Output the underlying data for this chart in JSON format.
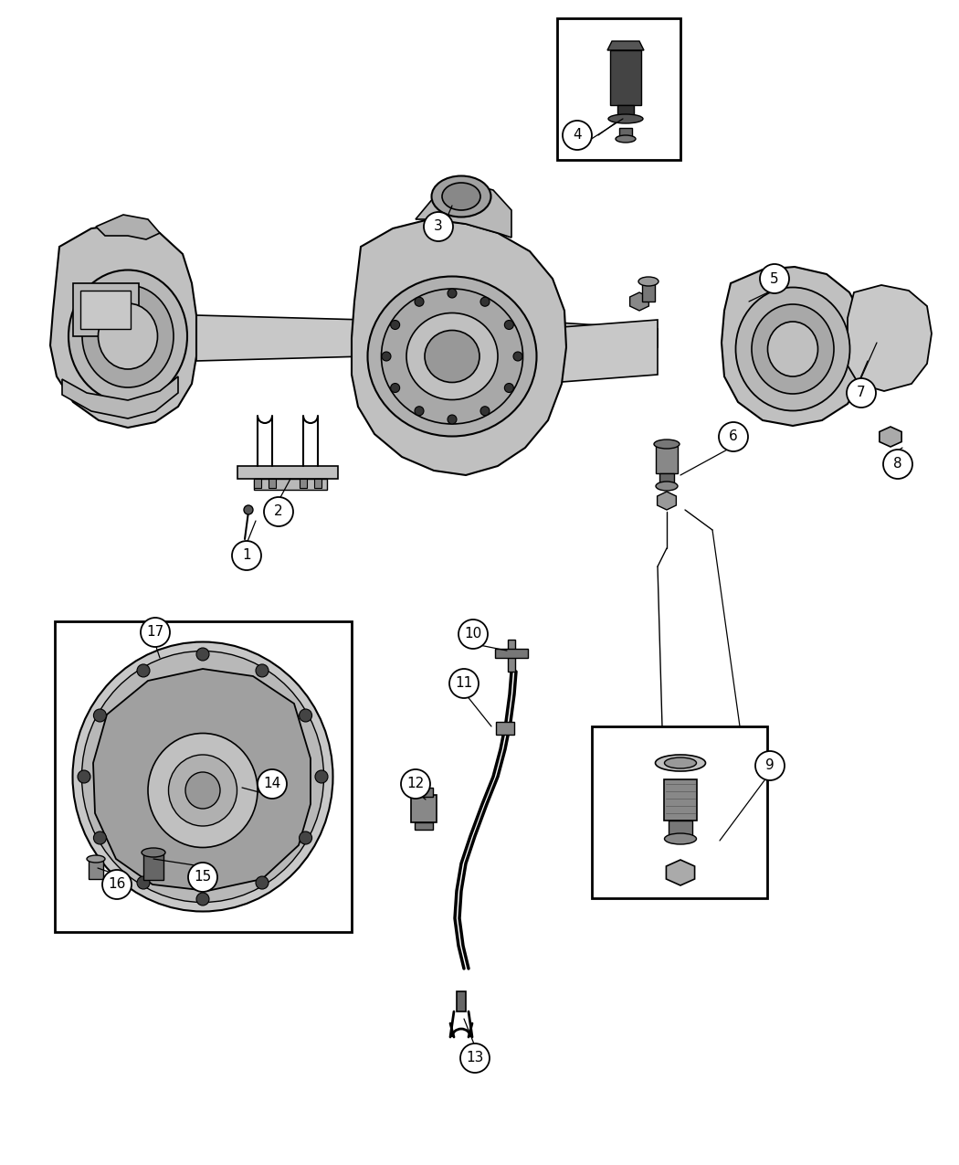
{
  "bg_color": "#ffffff",
  "lc": "#000000",
  "fig_width": 10.5,
  "fig_height": 12.75,
  "dpi": 100
}
